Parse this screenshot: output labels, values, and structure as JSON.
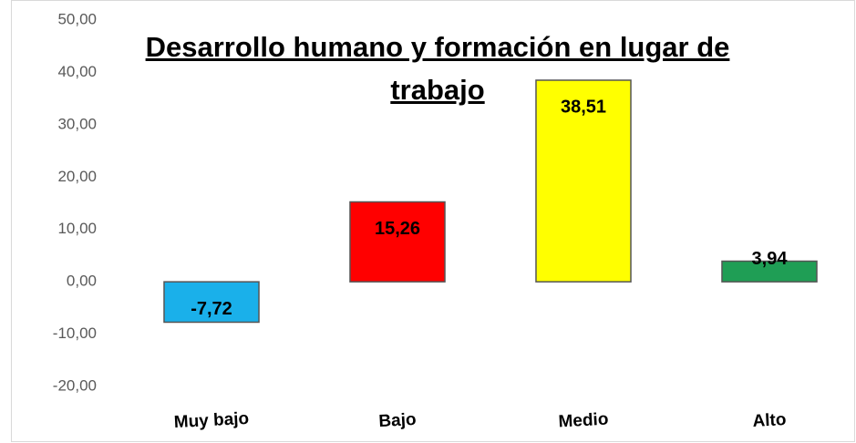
{
  "chart_data": {
    "type": "bar",
    "title": "Desarrollo humano y formación en lugar de trabajo",
    "categories": [
      "Muy bajo",
      "Bajo",
      "Medio",
      "Alto"
    ],
    "values": [
      -7.72,
      15.26,
      38.51,
      3.94
    ],
    "value_labels": [
      "-7,72",
      "15,26",
      "38,51",
      "3,94"
    ],
    "colors": [
      "#1ab0ea",
      "#ff0000",
      "#ffff00",
      "#1f9e55"
    ],
    "ylim": [
      -20,
      50
    ],
    "yticks": [
      {
        "value": -20,
        "label": "-20,00"
      },
      {
        "value": -10,
        "label": "-10,00"
      },
      {
        "value": 0,
        "label": "0,00"
      },
      {
        "value": 10,
        "label": "10,00"
      },
      {
        "value": 20,
        "label": "20,00"
      },
      {
        "value": 30,
        "label": "30,00"
      },
      {
        "value": 40,
        "label": "40,00"
      },
      {
        "value": 50,
        "label": "50,00"
      }
    ],
    "grid": false
  }
}
